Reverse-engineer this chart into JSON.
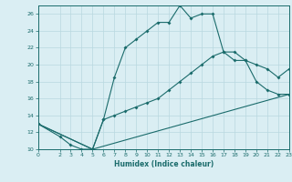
{
  "title": "",
  "xlabel": "Humidex (Indice chaleur)",
  "bg_color": "#daeef3",
  "grid_color": "#b8d8e0",
  "line_color": "#1a6b6b",
  "xlim": [
    0,
    23
  ],
  "ylim": [
    10,
    27
  ],
  "xticks": [
    0,
    2,
    3,
    4,
    5,
    6,
    7,
    8,
    9,
    10,
    11,
    12,
    13,
    14,
    15,
    16,
    17,
    18,
    19,
    20,
    21,
    22,
    23
  ],
  "yticks": [
    10,
    12,
    14,
    16,
    18,
    20,
    22,
    24,
    26
  ],
  "line1": {
    "x": [
      0,
      2,
      3,
      4,
      5,
      6,
      7,
      8,
      9,
      10,
      11,
      12,
      13,
      14,
      15,
      16,
      17,
      18,
      19,
      20,
      21,
      22,
      23
    ],
    "y": [
      13,
      11.5,
      10.5,
      10,
      10,
      13.5,
      18.5,
      22,
      23,
      24,
      25,
      25,
      27,
      25.5,
      26,
      26,
      21.5,
      20.5,
      20.5,
      18,
      17,
      16.5,
      16.5
    ]
  },
  "line2": {
    "x": [
      0,
      5,
      6,
      7,
      8,
      9,
      10,
      11,
      12,
      13,
      14,
      15,
      16,
      17,
      18,
      19,
      20,
      21,
      22,
      23
    ],
    "y": [
      13,
      10,
      13.5,
      14,
      14.5,
      15,
      15.5,
      16,
      17,
      18,
      19,
      20,
      21,
      21.5,
      21.5,
      20.5,
      20,
      19.5,
      18.5,
      19.5
    ]
  },
  "line3": {
    "x": [
      0,
      5,
      23
    ],
    "y": [
      13,
      10,
      16.5
    ]
  }
}
